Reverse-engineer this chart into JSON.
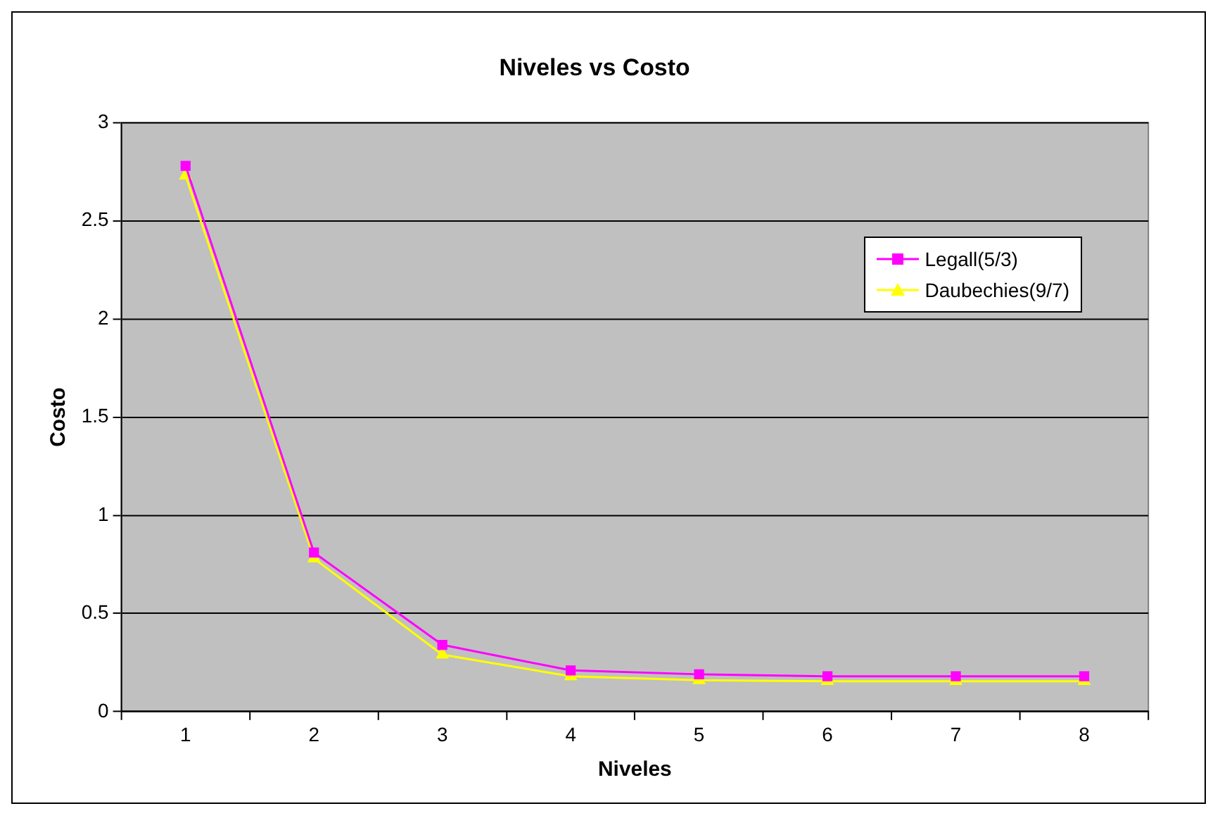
{
  "chart_data": {
    "type": "line",
    "title": "Niveles vs Costo",
    "xlabel": "Niveles",
    "ylabel": "Costo",
    "categories": [
      "1",
      "2",
      "3",
      "4",
      "5",
      "6",
      "7",
      "8"
    ],
    "series": [
      {
        "name": "Legall(5/3)",
        "color": "#ff00ff",
        "marker": "square",
        "values": [
          2.78,
          0.81,
          0.34,
          0.21,
          0.19,
          0.18,
          0.18,
          0.18
        ]
      },
      {
        "name": "Daubechies(9/7)",
        "color": "#ffff00",
        "marker": "triangle",
        "values": [
          2.73,
          0.78,
          0.29,
          0.18,
          0.16,
          0.155,
          0.155,
          0.155
        ]
      }
    ],
    "ylim": [
      0,
      3
    ],
    "yticks": [
      0,
      0.5,
      1,
      1.5,
      2,
      2.5,
      3
    ],
    "grid": "y",
    "legend": "top right",
    "line_style": "solid"
  }
}
